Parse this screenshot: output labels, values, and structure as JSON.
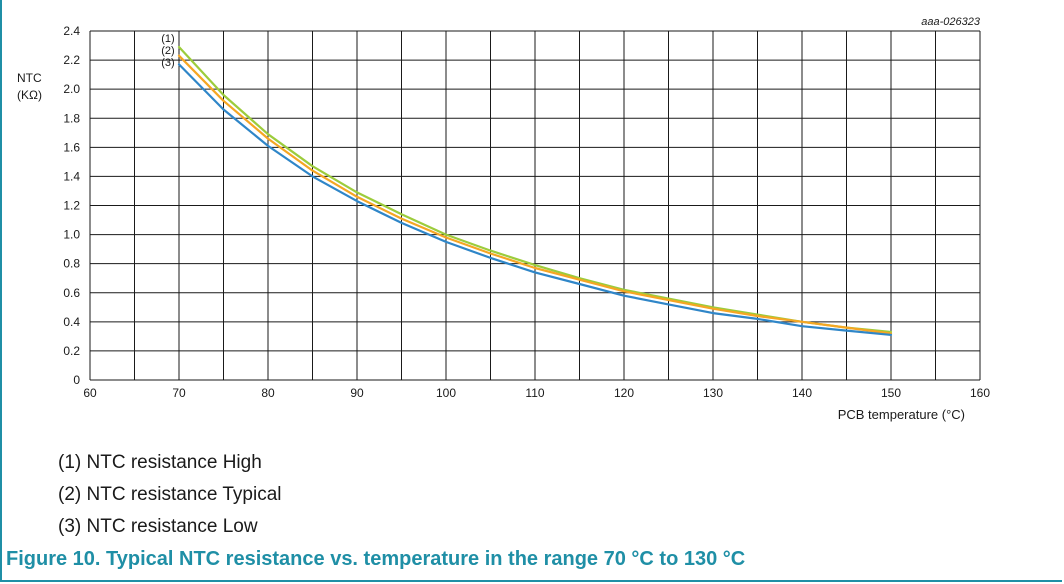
{
  "figure_id": "aaa-026323",
  "legend_items": [
    "(1) NTC resistance High",
    "(2) NTC resistance Typical",
    "(3) NTC resistance Low"
  ],
  "caption": "Figure 10.  Typical NTC resistance vs. temperature in the range 70 °C to 130 °C",
  "chart_data": {
    "type": "line",
    "title": "",
    "xlabel": "PCB temperature (°C)",
    "ylabel_line1": "NTC",
    "ylabel_line2": "(KΩ)",
    "xlim": [
      60,
      160
    ],
    "ylim": [
      0,
      2.4
    ],
    "x_ticks": [
      "60",
      "70",
      "80",
      "90",
      "100",
      "110",
      "120",
      "130",
      "140",
      "150",
      "160"
    ],
    "y_ticks": [
      "0",
      "0.2",
      "0.4",
      "0.6",
      "0.8",
      "1.0",
      "1.2",
      "1.4",
      "1.6",
      "1.8",
      "2.0",
      "2.2",
      "2.4"
    ],
    "grid": true,
    "x_minor_grid_step": 5,
    "series": [
      {
        "label": "(1)",
        "color": "#9ccc3c",
        "x": [
          70,
          75,
          80,
          85,
          90,
          95,
          100,
          105,
          110,
          115,
          120,
          125,
          130,
          135,
          140,
          145,
          150
        ],
        "y": [
          2.29,
          1.96,
          1.69,
          1.47,
          1.29,
          1.14,
          1.0,
          0.89,
          0.79,
          0.7,
          0.62,
          0.56,
          0.5,
          0.45,
          0.4,
          0.36,
          0.33
        ]
      },
      {
        "label": "(2)",
        "color": "#f5a623",
        "x": [
          70,
          75,
          80,
          85,
          90,
          95,
          100,
          105,
          110,
          115,
          120,
          125,
          130,
          135,
          140,
          145,
          150
        ],
        "y": [
          2.23,
          1.92,
          1.66,
          1.44,
          1.26,
          1.11,
          0.98,
          0.87,
          0.77,
          0.69,
          0.61,
          0.55,
          0.49,
          0.44,
          0.4,
          0.36,
          0.32
        ]
      },
      {
        "label": "(3)",
        "color": "#2f86c8",
        "x": [
          70,
          75,
          80,
          85,
          90,
          95,
          100,
          105,
          110,
          115,
          120,
          125,
          130,
          135,
          140,
          145,
          150
        ],
        "y": [
          2.17,
          1.86,
          1.61,
          1.4,
          1.23,
          1.08,
          0.95,
          0.84,
          0.74,
          0.66,
          0.58,
          0.52,
          0.46,
          0.42,
          0.37,
          0.34,
          0.31
        ]
      }
    ]
  }
}
